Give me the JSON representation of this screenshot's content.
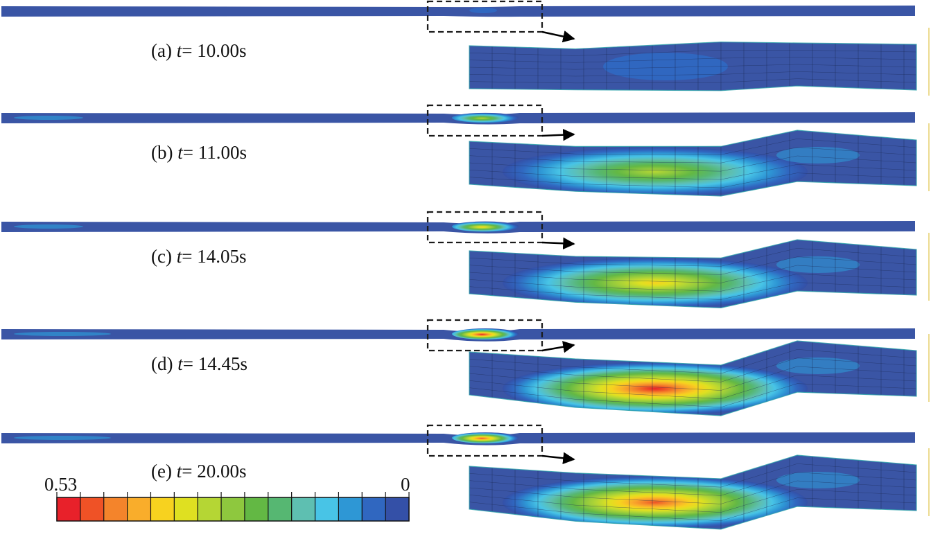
{
  "panels": [
    {
      "prefix": "(a) ",
      "var": "t",
      "eq": "= ",
      "time": "10.00s",
      "level": 0.05
    },
    {
      "prefix": "(b) ",
      "var": "t",
      "eq": "= ",
      "time": "11.00s",
      "level": 0.3
    },
    {
      "prefix": "(c) ",
      "var": "t",
      "eq": "= ",
      "time": "14.05s",
      "level": 0.36
    },
    {
      "prefix": "(d) ",
      "var": "t",
      "eq": "= ",
      "time": "14.45s",
      "level": 0.53
    },
    {
      "prefix": "(e) ",
      "var": "t",
      "eq": "= ",
      "time": "20.00s",
      "level": 0.51
    }
  ],
  "legend": {
    "max_label": "0.53",
    "min_label": "0",
    "colors": [
      "#e8212a",
      "#ef5226",
      "#f4842b",
      "#f9ad2b",
      "#f7d21f",
      "#dfe021",
      "#b5d634",
      "#8ec83e",
      "#63b844",
      "#56b772",
      "#5ebfb1",
      "#48c4e6",
      "#2e97d5",
      "#3067c0",
      "#3450a7"
    ]
  },
  "colors": {
    "bar": "#3a55a5",
    "frame": "#1a1a1a",
    "arrow": "#000000",
    "grid": "#1c2a55",
    "side_line": "#e6cf6a"
  }
}
